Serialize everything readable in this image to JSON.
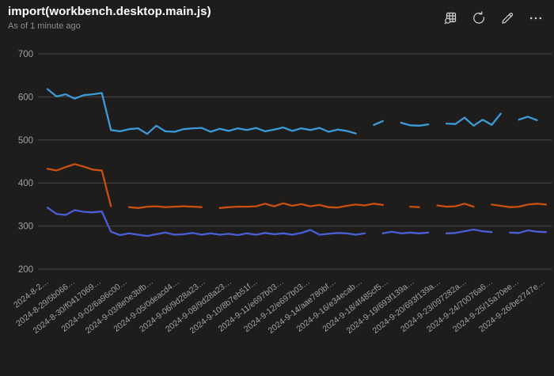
{
  "header": {
    "title": "import(workbench.desktop.main.js)",
    "subtitle": "As of 1 minute ago",
    "toolbar": [
      {
        "name": "view-data",
        "icon": "table-search-icon"
      },
      {
        "name": "refresh",
        "icon": "refresh-icon"
      },
      {
        "name": "edit",
        "icon": "pencil-icon"
      },
      {
        "name": "more-options",
        "icon": "ellipsis-icon"
      }
    ]
  },
  "colors": {
    "background": "#1e1d1c",
    "title": "#ffffff",
    "subtitle": "#908e8c",
    "icon": "#d6d4d2",
    "grid": "#4a4846",
    "axis_text": "#a3a19f"
  },
  "chart_data": {
    "type": "line",
    "title": "import(workbench.desktop.main.js)",
    "ylim": [
      200,
      700
    ],
    "y_ticks": [
      700,
      600,
      500,
      400,
      300,
      200
    ],
    "grid": "horizontal",
    "legend": "none",
    "x_tick_labels": [
      "2024-8-2…",
      "2024-8-29/5b066…",
      "2024-8-30/f0417069…",
      "2024-9-02/6a96c00…",
      "2024-9-03/8e0e3bfb…",
      "2024-9-05/0deacd4…",
      "2024-9-06/9d28a23…",
      "2024-9-08/9d28a23…",
      "2024-9-10/8b7eb51f…",
      "2024-9-11/e697b03…",
      "2024-9-12/e697b03…",
      "2024-9-14/aae780bf…",
      "2024-9-16/e34ecab…",
      "2024-9-18/4f485cf5…",
      "2024-9-19/693f139a…",
      "2024-9-20/693f139a…",
      "2024-9-23/097282a…",
      "2024-9-24/70076a6…",
      "2024-9-25/15a70ee…",
      "2024-9-26/be2747e…"
    ],
    "series": [
      {
        "name": "blue",
        "color": "#3a9bd8",
        "values": [
          618,
          601,
          606,
          596,
          604,
          606,
          609,
          523,
          520,
          525,
          527,
          514,
          533,
          520,
          519,
          525,
          527,
          528,
          519,
          526,
          521,
          527,
          523,
          528,
          520,
          524,
          529,
          521,
          527,
          523,
          528,
          519,
          524,
          521,
          515,
          null,
          535,
          544,
          null,
          540,
          534,
          533,
          536,
          null,
          538,
          537,
          552,
          533,
          547,
          535,
          561,
          null,
          547,
          554,
          546,
          null
        ]
      },
      {
        "name": "orange",
        "color": "#ca5010",
        "values": [
          433,
          429,
          437,
          444,
          438,
          431,
          429,
          346,
          null,
          344,
          342,
          345,
          346,
          344,
          345,
          346,
          345,
          344,
          null,
          342,
          344,
          345,
          345,
          346,
          352,
          346,
          353,
          347,
          351,
          346,
          349,
          344,
          343,
          347,
          350,
          348,
          352,
          349,
          null,
          null,
          345,
          344,
          null,
          348,
          345,
          346,
          352,
          345,
          null,
          350,
          347,
          344,
          345,
          350,
          352,
          350
        ]
      },
      {
        "name": "purple",
        "color": "#4a5fd6",
        "values": [
          343,
          328,
          326,
          337,
          333,
          332,
          334,
          287,
          279,
          283,
          280,
          277,
          281,
          285,
          280,
          281,
          284,
          280,
          283,
          280,
          282,
          279,
          283,
          280,
          284,
          281,
          283,
          280,
          284,
          291,
          280,
          282,
          284,
          283,
          280,
          283,
          null,
          283,
          287,
          283,
          285,
          283,
          285,
          null,
          283,
          284,
          288,
          292,
          288,
          286,
          null,
          285,
          284,
          290,
          287,
          286
        ]
      }
    ]
  }
}
